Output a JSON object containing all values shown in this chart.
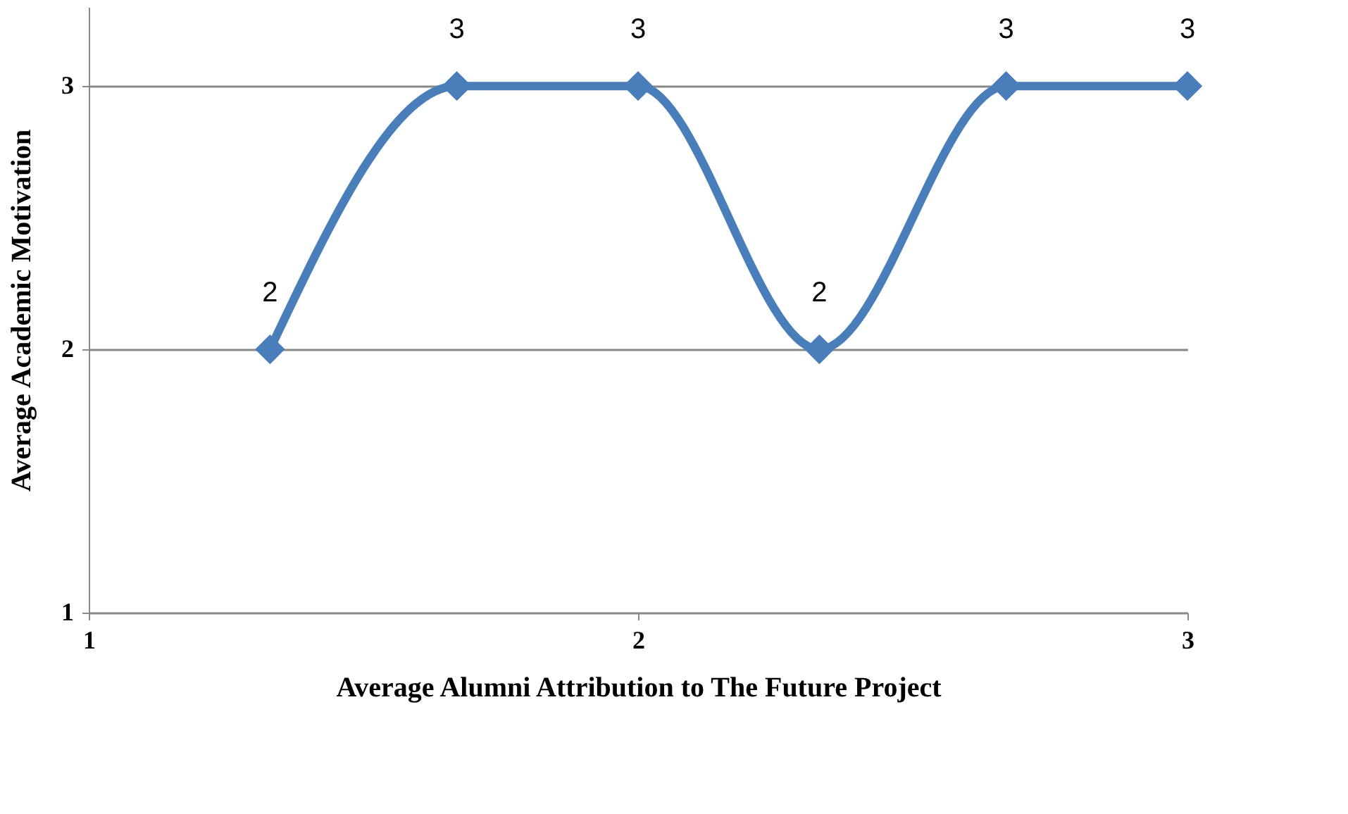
{
  "chart_data": {
    "type": "line",
    "xlabel": "Average Alumni Attribution to The Future Project",
    "ylabel": "Average Academic Motivation",
    "x": [
      1.33,
      1.67,
      2,
      2.33,
      2.67,
      3
    ],
    "series": [
      {
        "color": "#4a7ebb",
        "values": [
          2,
          3,
          3,
          2,
          3,
          3
        ]
      }
    ],
    "xlim": [
      1,
      3
    ],
    "ylim": [
      1,
      3.3
    ],
    "xticks": [
      1,
      2,
      3
    ],
    "yticks": [
      1,
      2,
      3
    ],
    "grid": "y",
    "marker": "diamond",
    "line_style": "solid",
    "data_labels": true
  }
}
